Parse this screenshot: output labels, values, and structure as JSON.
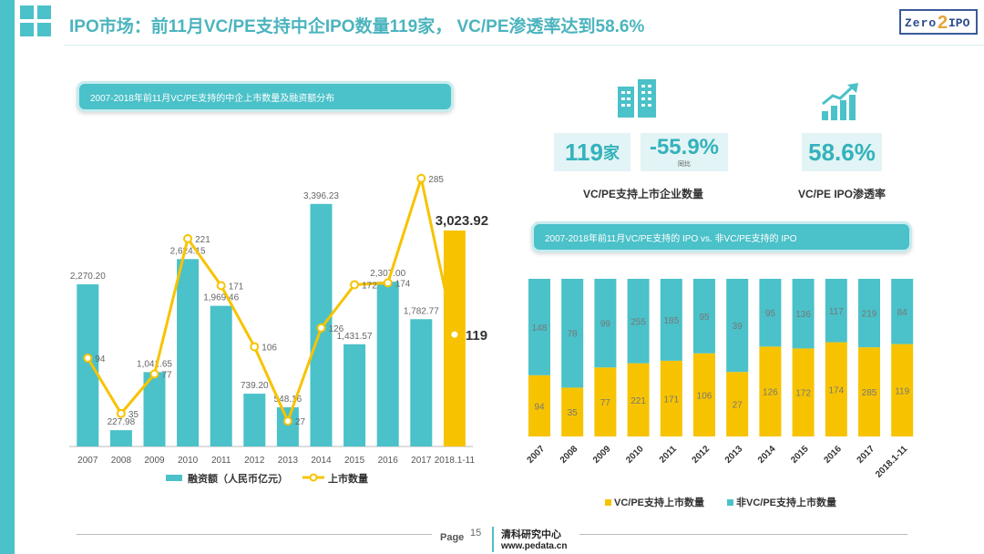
{
  "header": {
    "title": "IPO市场：前11月VC/PE支持中企IPO数量119家， VC/PE渗透率达到58.6%",
    "logo_left": "Zero",
    "logo_num": "2",
    "logo_right": "IPO"
  },
  "stats": {
    "count_value": "119",
    "count_unit": "家",
    "yoy_value": "-55.9%",
    "yoy_label": "同比",
    "count_caption": "VC/PE支持上市企业数量",
    "penetration_value": "58.6%",
    "penetration_caption": "VC/PE IPO渗透率"
  },
  "footer": {
    "page_label": "Page",
    "page_number": "15",
    "org": "清科研究中心",
    "url": "www.pedata.cn"
  },
  "colors": {
    "teal": "#4bc1c9",
    "yellow": "#f7c300",
    "yellow_dark": "#f2ae12"
  },
  "chart_data": [
    {
      "type": "bar+line",
      "title": "2007-2018年前11月VC/PE支持的中企上市数量及融资额分布",
      "categories": [
        "2007",
        "2008",
        "2009",
        "2010",
        "2011",
        "2012",
        "2013",
        "2014",
        "2015",
        "2016",
        "2017",
        "2018.1-11"
      ],
      "series": [
        {
          "name": "融资额（人民币亿元）",
          "type": "bar",
          "values": [
            2270.2,
            227.98,
            1041.65,
            2624.15,
            1969.46,
            739.2,
            548.16,
            3396.23,
            1431.57,
            2307.0,
            1782.77,
            3023.92
          ],
          "labels": [
            "2,270.20",
            "227.98",
            "1,041.65",
            "2,624.15",
            "1,969.46",
            "739.20",
            "548.16",
            "3,396.23",
            "1,431.57",
            "2,307.00",
            "1,782.77",
            "3,023.92"
          ]
        },
        {
          "name": "上市数量",
          "type": "line",
          "values": [
            94,
            35,
            77,
            221,
            171,
            106,
            27,
            126,
            172,
            174,
            285,
            119
          ],
          "labels": [
            "94",
            "35",
            "77",
            "221",
            "171",
            "106",
            "27",
            "126",
            "172",
            "174",
            "285",
            "119"
          ]
        }
      ],
      "ylim_bars": [
        0,
        3700
      ],
      "ylim_line": [
        0,
        310
      ],
      "legend": "bottom"
    },
    {
      "type": "stacked-bar",
      "title": "2007-2018年前11月VC/PE支持的 IPO vs. 非VC/PE支持的 IPO",
      "categories": [
        "2007",
        "2008",
        "2009",
        "2010",
        "2011",
        "2012",
        "2013",
        "2014",
        "2015",
        "2016",
        "2017",
        "2018.1-11"
      ],
      "series": [
        {
          "name": "VC/PE支持上市数量",
          "values": [
            94,
            35,
            77,
            221,
            171,
            106,
            27,
            126,
            172,
            174,
            285,
            119
          ]
        },
        {
          "name": "非VC/PE支持上市数量",
          "values": [
            148,
            78,
            99,
            255,
            185,
            95,
            39,
            95,
            136,
            117,
            219,
            84
          ]
        }
      ],
      "normalized": true,
      "legend": "bottom"
    }
  ]
}
